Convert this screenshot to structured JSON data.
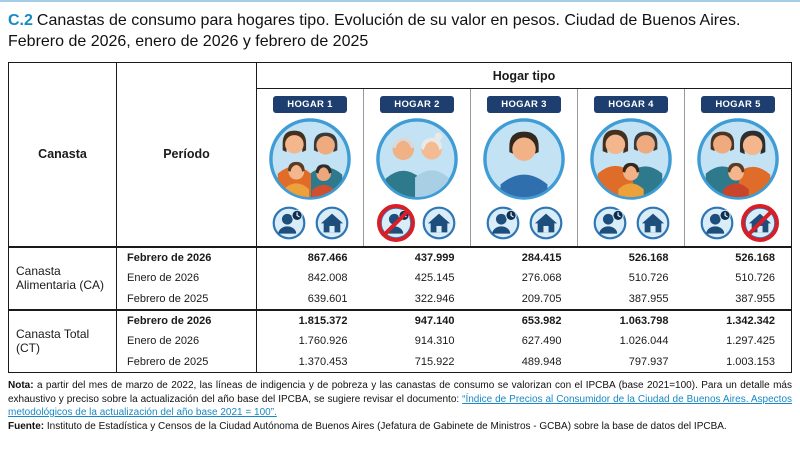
{
  "title": {
    "code": "C.2",
    "text": "Canastas de consumo para hogares tipo. Evolución de su valor en pesos. Ciudad de Buenos Aires. Febrero de 2026, enero de 2026 y febrero de 2025"
  },
  "table": {
    "header_group": "Hogar tipo",
    "col_canasta": "Canasta",
    "col_periodo": "Período",
    "households": [
      {
        "label": "HOGAR 1",
        "avatar": "family-4",
        "worker_banned": false,
        "house_banned": false
      },
      {
        "label": "HOGAR 2",
        "avatar": "elderly-couple",
        "worker_banned": true,
        "house_banned": false
      },
      {
        "label": "HOGAR 3",
        "avatar": "single-adult",
        "worker_banned": false,
        "house_banned": false
      },
      {
        "label": "HOGAR 4",
        "avatar": "family-3",
        "worker_banned": false,
        "house_banned": false
      },
      {
        "label": "HOGAR 5",
        "avatar": "family-3-renter",
        "worker_banned": false,
        "house_banned": true
      }
    ],
    "icons": {
      "worker": "worker-clock-icon",
      "house": "house-icon",
      "prohibition": "prohibition-icon"
    },
    "sections": [
      {
        "name": "Canasta Alimentaria (CA)",
        "rows": [
          {
            "period": "Febrero de 2026",
            "bold": true,
            "values": [
              "867.466",
              "437.999",
              "284.415",
              "526.168",
              "526.168"
            ]
          },
          {
            "period": "Enero de 2026",
            "bold": false,
            "values": [
              "842.008",
              "425.145",
              "276.068",
              "510.726",
              "510.726"
            ]
          },
          {
            "period": "Febrero de 2025",
            "bold": false,
            "values": [
              "639.601",
              "322.946",
              "209.705",
              "387.955",
              "387.955"
            ]
          }
        ]
      },
      {
        "name": "Canasta Total (CT)",
        "rows": [
          {
            "period": "Febrero de 2026",
            "bold": true,
            "values": [
              "1.815.372",
              "947.140",
              "653.982",
              "1.063.798",
              "1.342.342"
            ]
          },
          {
            "period": "Enero de 2026",
            "bold": false,
            "values": [
              "1.760.926",
              "914.310",
              "627.490",
              "1.026.044",
              "1.297.425"
            ]
          },
          {
            "period": "Febrero de 2025",
            "bold": false,
            "values": [
              "1.370.453",
              "715.922",
              "489.948",
              "797.937",
              "1.003.153"
            ]
          }
        ]
      }
    ]
  },
  "notes": {
    "nota_label": "Nota:",
    "nota_text": " a partir del mes de marzo de 2022, las líneas de indigencia y de pobreza y las canastas de consumo se valorizan con el IPCBA (base 2021=100). Para un detalle más exhaustivo y preciso sobre la actualización del año base del IPCBA, se sugiere revisar el documento: ",
    "nota_link": "“Índice de Precios al Consumidor de la Ciudad de Buenos Aires. Aspectos metodológicos de la actualización del año base 2021 = 100”.",
    "fuente_label": "Fuente:",
    "fuente_text": " Instituto de Estadística y Censos de la Ciudad Autónoma de Buenos Aires (Jefatura de Gabinete de Ministros - GCBA) sobre la base de datos del IPCBA."
  },
  "colors": {
    "accent_blue": "#1789c5",
    "badge_navy": "#1d3e6e",
    "ban_red": "#d81e26",
    "border_dark": "#1a1a1a",
    "avatar_border": "#3f9cd4",
    "avatar_bg": "#c3e3f5"
  }
}
